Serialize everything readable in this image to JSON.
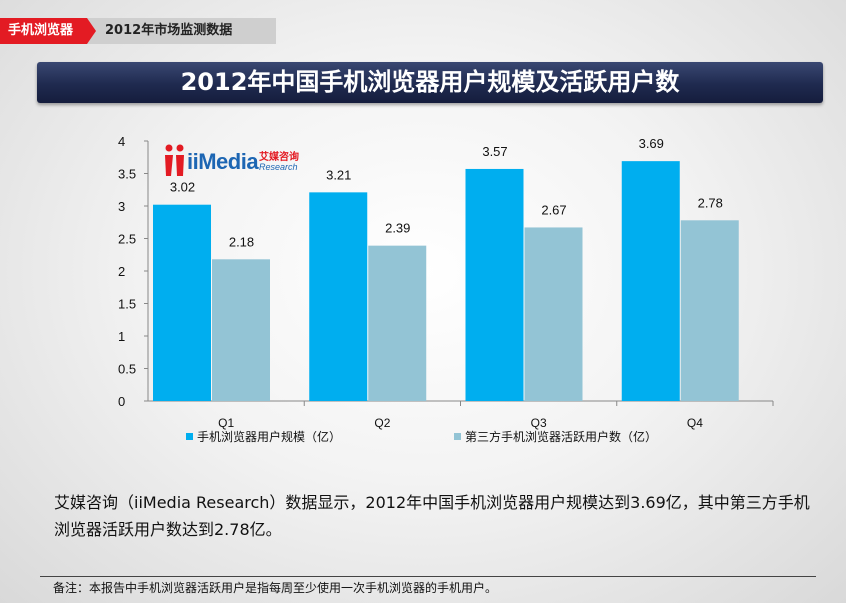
{
  "breadcrumb": {
    "section": "手机浏览器",
    "subsection": "2012年市场监测数据"
  },
  "title": "2012年中国手机浏览器用户规模及活跃用户数",
  "logo": {
    "word": "iiMedia",
    "cn": "艾媒咨询",
    "en": "Research"
  },
  "colors": {
    "series1": "#00aeef",
    "series2": "#93c4d5",
    "title_bg": "#1f2a4f",
    "accent": "#e31b23"
  },
  "chart_data": {
    "type": "bar",
    "categories": [
      "Q1",
      "Q2",
      "Q3",
      "Q4"
    ],
    "series": [
      {
        "name": "手机浏览器用户规模（亿）",
        "values": [
          3.02,
          3.21,
          3.57,
          3.69
        ]
      },
      {
        "name": "第三方手机浏览器活跃用户数（亿）",
        "values": [
          2.18,
          2.39,
          2.67,
          2.78
        ]
      }
    ],
    "ylim": [
      0,
      4
    ],
    "yticks": [
      "0",
      "0.5",
      "1",
      "1.5",
      "2",
      "2.5",
      "3",
      "3.5",
      "4"
    ],
    "grid": false,
    "legend": "bottom"
  },
  "description": "艾媒咨询（iiMedia Research）数据显示，2012年中国手机浏览器用户规模达到3.69亿，其中第三方手机浏览器活跃用户数达到2.78亿。",
  "footnote": "备注：本报告中手机浏览器活跃用户是指每周至少使用一次手机浏览器的手机用户。"
}
